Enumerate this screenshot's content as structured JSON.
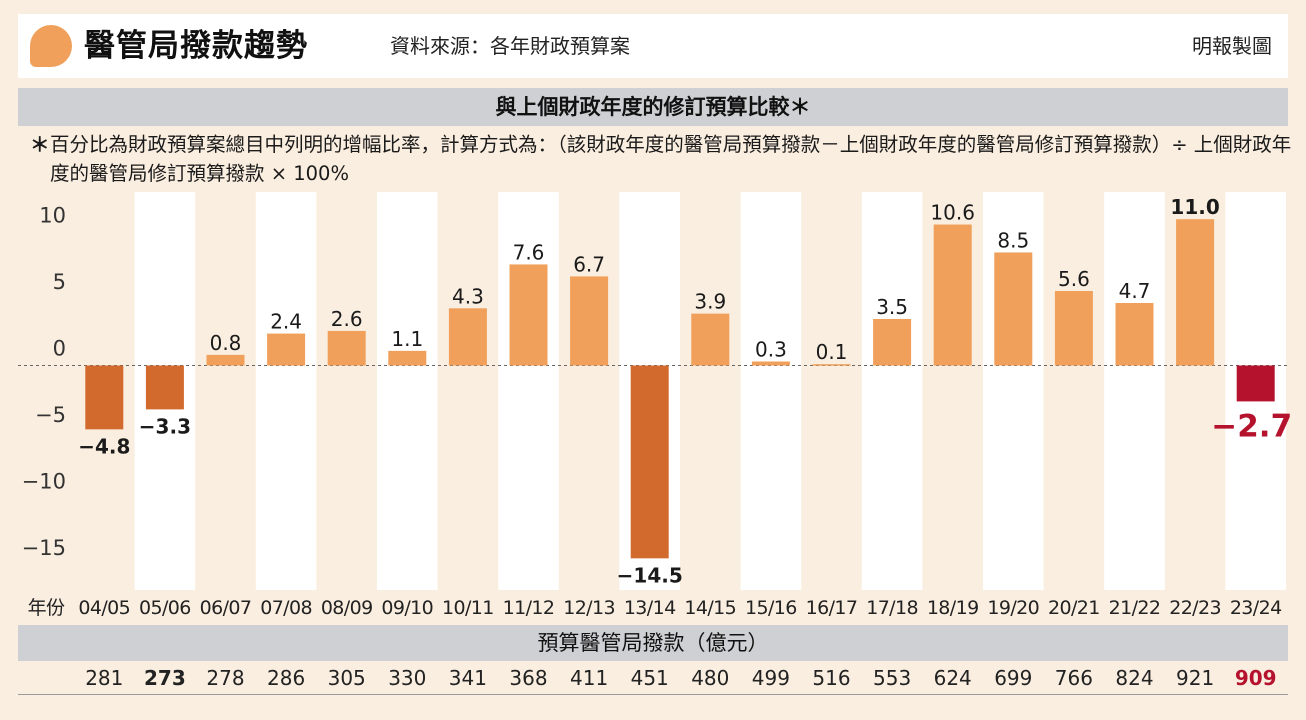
{
  "header": {
    "title": "醫管局撥款趨勢",
    "source": "資料來源：各年財政預算案",
    "credit": "明報製圖"
  },
  "subtitle": "與上個財政年度的修訂預算比較＊",
  "note": {
    "star": "＊",
    "text": "百分比為財政預算案總目中列明的增幅比率，計算方式為：（該財政年度的醫管局預算撥款－上個財政年度的醫管局修訂預算撥款）÷ 上個財政年度的醫管局修訂預算撥款 × 100%"
  },
  "colors": {
    "positive": "#f0a05a",
    "negative": "#d2692d",
    "highlight": "#b5122e",
    "column_bg": "#ffffff",
    "background": "#faeee0"
  },
  "chart_data": {
    "type": "bar",
    "xlabel": "年份",
    "categories": [
      "04/05",
      "05/06",
      "06/07",
      "07/08",
      "08/09",
      "09/10",
      "10/11",
      "11/12",
      "12/13",
      "13/14",
      "14/15",
      "15/16",
      "16/17",
      "17/18",
      "18/19",
      "19/20",
      "20/21",
      "21/22",
      "22/23",
      "23/24"
    ],
    "values": [
      -4.8,
      -3.3,
      0.8,
      2.4,
      2.6,
      1.1,
      4.3,
      7.6,
      6.7,
      -14.5,
      3.9,
      0.3,
      0.1,
      3.5,
      10.6,
      8.5,
      5.6,
      4.7,
      11.0,
      -2.7
    ],
    "value_labels": [
      "−4.8",
      "−3.3",
      "0.8",
      "2.4",
      "2.6",
      "1.1",
      "4.3",
      "7.6",
      "6.7",
      "−14.5",
      "3.9",
      "0.3",
      "0.1",
      "3.5",
      "10.6",
      "8.5",
      "5.6",
      "4.7",
      "11.0",
      "−2.7"
    ],
    "bold_labels": [
      "04/05",
      "05/06",
      "13/14",
      "22/23",
      "23/24"
    ],
    "highlight": "23/24",
    "yticks": [
      10,
      5,
      0,
      -5,
      -10,
      -15
    ],
    "ytick_labels": [
      "10",
      "5",
      "0",
      "−5",
      "−10",
      "−15"
    ],
    "ylim": [
      -17,
      13.5
    ],
    "zero_line": "dashed"
  },
  "totals": {
    "label": "預算醫管局撥款（億元）",
    "values": [
      "281",
      "273",
      "278",
      "286",
      "305",
      "330",
      "341",
      "368",
      "411",
      "451",
      "480",
      "499",
      "516",
      "553",
      "624",
      "699",
      "766",
      "824",
      "921",
      "909"
    ],
    "bold": [
      "05/06"
    ],
    "highlight": "23/24"
  }
}
